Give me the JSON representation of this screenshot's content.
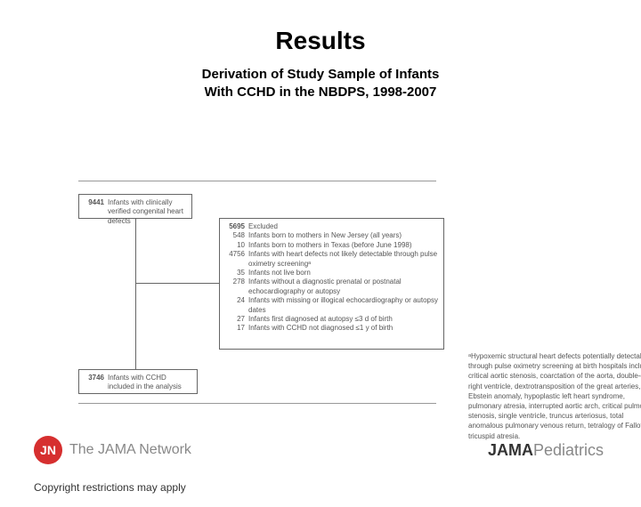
{
  "title": "Results",
  "subtitle_l1": "Derivation of Study Sample of Infants",
  "subtitle_l2": "With CCHD in the NBDPS, 1998-2007",
  "box1": {
    "n": "9441",
    "t": "Infants with clinically verified congenital heart defects"
  },
  "box2_head": {
    "n": "5695",
    "t": "Excluded"
  },
  "box2_items": [
    {
      "n": "548",
      "t": "Infants born to mothers in New Jersey (all years)"
    },
    {
      "n": "10",
      "t": "Infants born to mothers in Texas (before June 1998)"
    },
    {
      "n": "4756",
      "t": "Infants with heart defects not likely detectable through pulse oximetry screeningᵃ"
    },
    {
      "n": "35",
      "t": "Infants not live born"
    },
    {
      "n": "278",
      "t": "Infants without a diagnostic prenatal or postnatal echocardiography or autopsy"
    },
    {
      "n": "24",
      "t": "Infants with missing or illogical echocardiography or autopsy dates"
    },
    {
      "n": "27",
      "t": "Infants first diagnosed at autopsy ≤3 d of birth"
    },
    {
      "n": "17",
      "t": "Infants with CCHD not diagnosed ≤1 y of birth"
    }
  ],
  "box3": {
    "n": "3746",
    "t": "Infants with CCHD included in the analysis"
  },
  "footnote": "ᵃHypoxemic structural heart defects potentially detectable through pulse oximetry screening at birth hospitals include critical aortic stenosis, coarctation of the aorta, double-outlet right ventricle, dextrotransposition of the great arteries, Ebstein anomaly, hypoplastic left heart syndrome, pulmonary atresia, interrupted aortic arch, critical pulmonary stenosis, single ventricle, truncus arteriosus, total anomalous pulmonary venous return, tetralogy of Fallot, and tricuspid atresia.",
  "logo_jn_badge": "JN",
  "logo_jn_text": "The JAMA Network",
  "logo_jp_a": "JAMA",
  "logo_jp_b": "Pediatrics",
  "copyright": "Copyright restrictions may apply",
  "colors": {
    "accent": "#d62f2f",
    "text": "#555555",
    "lines": "#666666",
    "bg": "#ffffff"
  }
}
